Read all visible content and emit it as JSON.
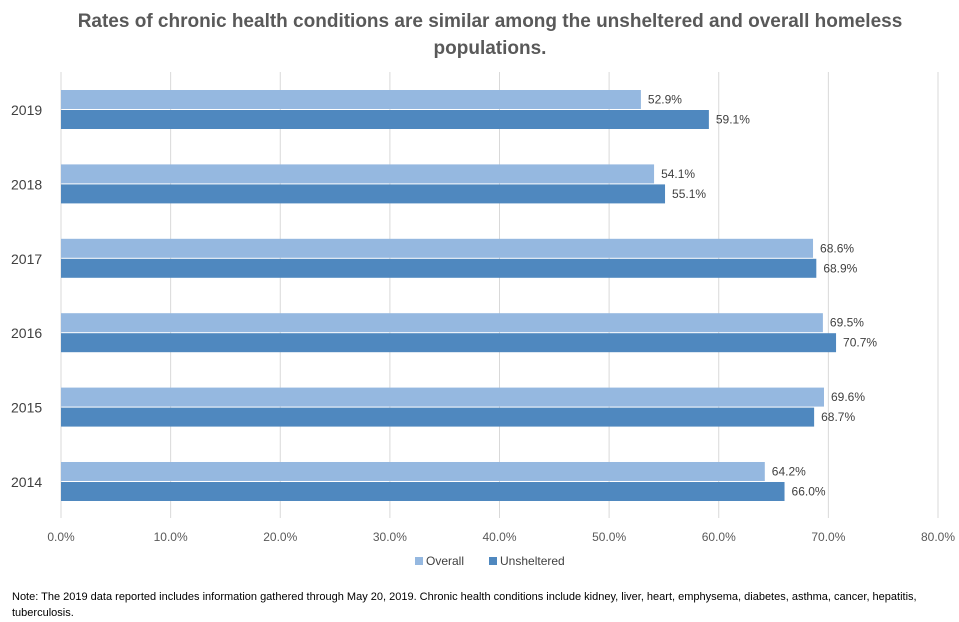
{
  "chart_data": {
    "type": "bar",
    "orientation": "horizontal",
    "title": "Rates of chronic health conditions are similar among the unsheltered and overall homeless populations.",
    "categories": [
      "2019",
      "2018",
      "2017",
      "2016",
      "2015",
      "2014"
    ],
    "series": [
      {
        "name": "Overall",
        "color": "#95b8e0",
        "values": [
          52.9,
          54.1,
          68.6,
          69.5,
          69.6,
          64.2
        ],
        "labels": [
          "52.9%",
          "54.1%",
          "68.6%",
          "69.5%",
          "69.6%",
          "64.2%"
        ]
      },
      {
        "name": "Unsheltered",
        "color": "#4f88bf",
        "values": [
          59.1,
          55.1,
          68.9,
          70.7,
          68.7,
          66.0
        ],
        "labels": [
          "59.1%",
          "55.1%",
          "68.9%",
          "70.7%",
          "68.7%",
          "66.0%"
        ]
      }
    ],
    "xlim": [
      0,
      80
    ],
    "xticks": [
      0,
      10,
      20,
      30,
      40,
      50,
      60,
      70,
      80
    ],
    "xtick_labels": [
      "0.0%",
      "10.0%",
      "20.0%",
      "30.0%",
      "40.0%",
      "50.0%",
      "60.0%",
      "70.0%",
      "80.0%"
    ],
    "xlabel": "",
    "ylabel": "",
    "grid": true,
    "legend_position": "bottom",
    "note": "Note: The 2019 data reported includes information gathered through May 20, 2019. Chronic health conditions include kidney, liver, heart, emphysema, diabetes, asthma, cancer, hepatitis, tuberculosis."
  }
}
